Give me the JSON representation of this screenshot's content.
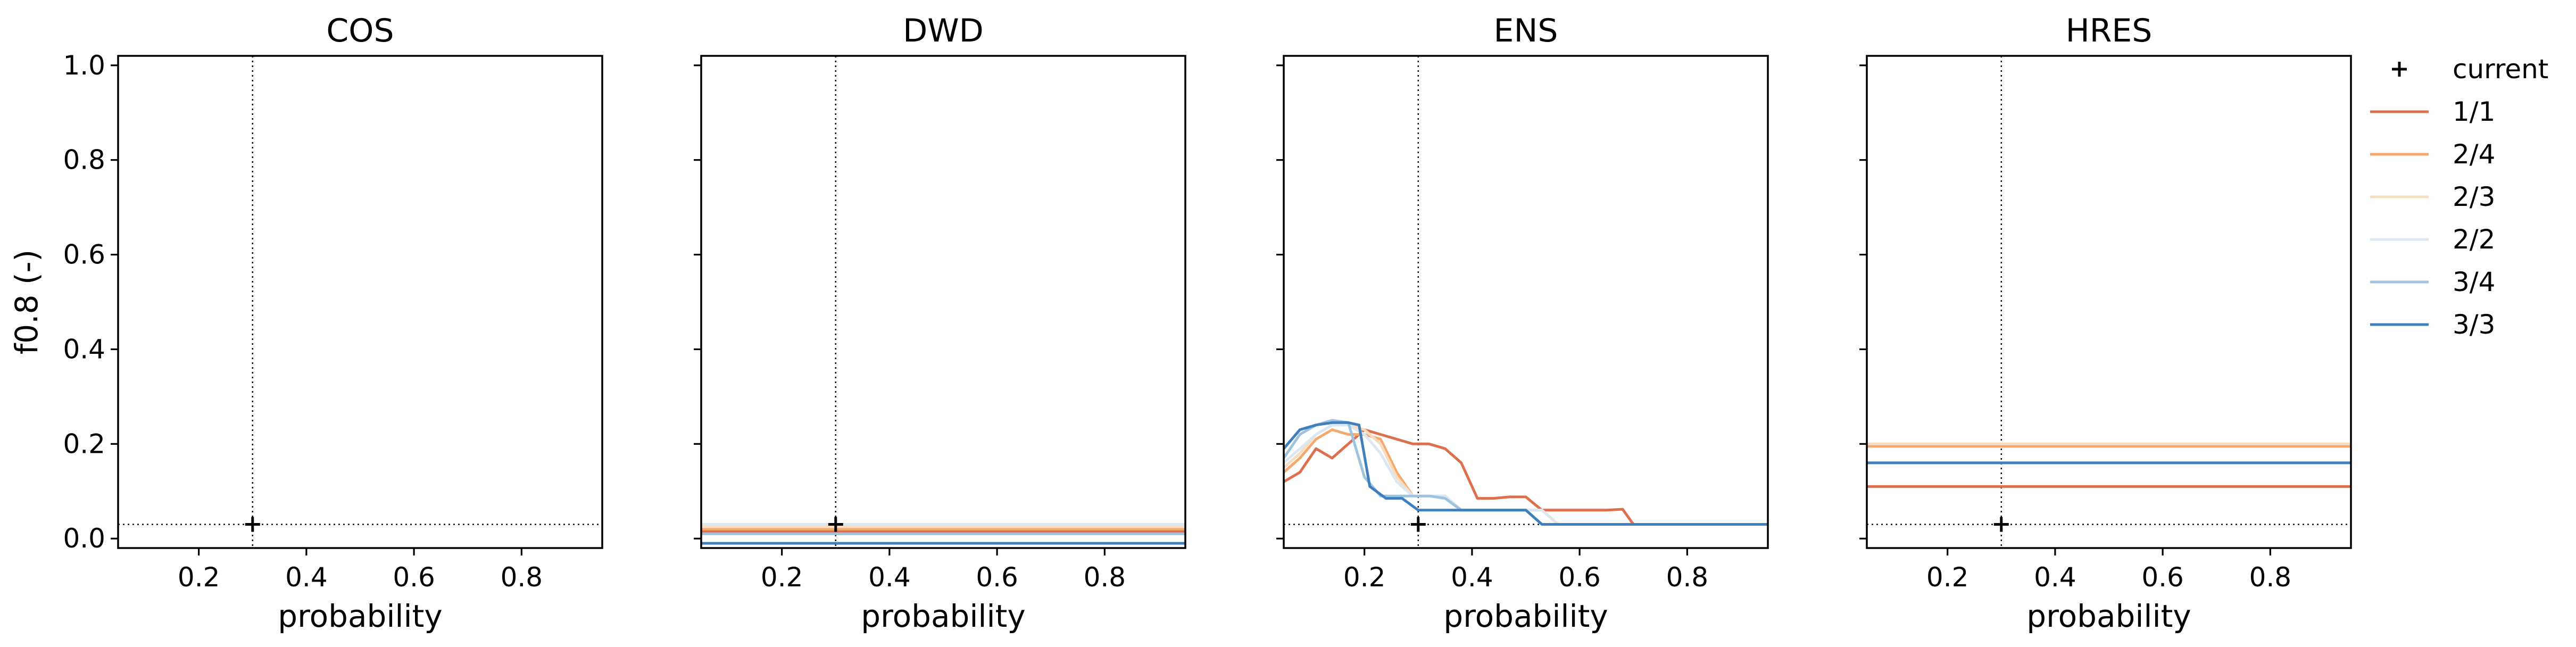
{
  "chart_data": [
    {
      "type": "line",
      "title": "COS",
      "xlabel": "probability",
      "ylabel": "f0.8 (-)",
      "xlim": [
        0.05,
        0.95
      ],
      "ylim": [
        -0.02,
        1.02
      ],
      "xticks": [
        0.2,
        0.4,
        0.6,
        0.8
      ],
      "yticks": [
        0.0,
        0.2,
        0.4,
        0.6,
        0.8,
        1.0
      ],
      "current": {
        "x": 0.3,
        "y": 0.03
      },
      "series": []
    },
    {
      "type": "line",
      "title": "DWD",
      "xlabel": "probability",
      "ylabel": "",
      "xlim": [
        0.05,
        0.95
      ],
      "ylim": [
        -0.02,
        1.02
      ],
      "xticks": [
        0.2,
        0.4,
        0.6,
        0.8
      ],
      "yticks": [
        0.0,
        0.2,
        0.4,
        0.6,
        0.8,
        1.0
      ],
      "current": {
        "x": 0.3,
        "y": 0.03
      },
      "series": [
        {
          "name": "1/1",
          "x": [
            0.05,
            0.95
          ],
          "y": [
            0.015,
            0.015
          ]
        },
        {
          "name": "2/4",
          "x": [
            0.05,
            0.95
          ],
          "y": [
            0.02,
            0.02
          ]
        },
        {
          "name": "2/3",
          "x": [
            0.05,
            0.95
          ],
          "y": [
            0.025,
            0.025
          ]
        },
        {
          "name": "2/2",
          "x": [
            0.05,
            0.95
          ],
          "y": [
            0.03,
            0.03
          ]
        },
        {
          "name": "3/4",
          "x": [
            0.05,
            0.95
          ],
          "y": [
            0.01,
            0.01
          ]
        },
        {
          "name": "3/3",
          "x": [
            0.05,
            0.95
          ],
          "y": [
            -0.01,
            -0.01
          ]
        }
      ]
    },
    {
      "type": "line",
      "title": "ENS",
      "xlabel": "probability",
      "ylabel": "",
      "xlim": [
        0.05,
        0.95
      ],
      "ylim": [
        -0.02,
        1.02
      ],
      "xticks": [
        0.2,
        0.4,
        0.6,
        0.8
      ],
      "yticks": [
        0.0,
        0.2,
        0.4,
        0.6,
        0.8,
        1.0
      ],
      "current": {
        "x": 0.3,
        "y": 0.03
      },
      "series": [
        {
          "name": "1/1",
          "x": [
            0.05,
            0.08,
            0.11,
            0.14,
            0.17,
            0.2,
            0.23,
            0.26,
            0.29,
            0.32,
            0.35,
            0.38,
            0.41,
            0.44,
            0.47,
            0.5,
            0.53,
            0.56,
            0.59,
            0.62,
            0.65,
            0.68,
            0.7,
            0.95
          ],
          "y": [
            0.12,
            0.14,
            0.19,
            0.17,
            0.2,
            0.23,
            0.22,
            0.21,
            0.2,
            0.2,
            0.19,
            0.16,
            0.085,
            0.085,
            0.088,
            0.088,
            0.06,
            0.06,
            0.06,
            0.06,
            0.06,
            0.062,
            0.03,
            0.03
          ]
        },
        {
          "name": "2/4",
          "x": [
            0.05,
            0.08,
            0.11,
            0.14,
            0.17,
            0.2,
            0.23,
            0.26,
            0.29,
            0.32,
            0.35,
            0.38,
            0.41,
            0.44,
            0.47,
            0.5,
            0.53,
            0.56,
            0.95
          ],
          "y": [
            0.14,
            0.17,
            0.21,
            0.23,
            0.22,
            0.22,
            0.21,
            0.14,
            0.09,
            0.09,
            0.09,
            0.06,
            0.06,
            0.06,
            0.06,
            0.06,
            0.06,
            0.03,
            0.03
          ]
        },
        {
          "name": "2/3",
          "x": [
            0.05,
            0.08,
            0.11,
            0.14,
            0.17,
            0.2,
            0.23,
            0.26,
            0.29,
            0.32,
            0.35,
            0.38,
            0.41,
            0.44,
            0.47,
            0.5,
            0.53,
            0.56,
            0.95
          ],
          "y": [
            0.15,
            0.18,
            0.22,
            0.24,
            0.24,
            0.23,
            0.2,
            0.13,
            0.09,
            0.09,
            0.09,
            0.06,
            0.06,
            0.06,
            0.06,
            0.06,
            0.06,
            0.03,
            0.03
          ]
        },
        {
          "name": "2/2",
          "x": [
            0.05,
            0.08,
            0.11,
            0.14,
            0.17,
            0.2,
            0.23,
            0.26,
            0.29,
            0.32,
            0.35,
            0.38,
            0.41,
            0.44,
            0.47,
            0.5,
            0.53,
            0.56,
            0.95
          ],
          "y": [
            0.16,
            0.19,
            0.22,
            0.24,
            0.24,
            0.22,
            0.18,
            0.12,
            0.09,
            0.09,
            0.09,
            0.06,
            0.06,
            0.06,
            0.06,
            0.06,
            0.06,
            0.03,
            0.03
          ]
        },
        {
          "name": "3/4",
          "x": [
            0.05,
            0.08,
            0.11,
            0.14,
            0.17,
            0.2,
            0.23,
            0.26,
            0.29,
            0.32,
            0.35,
            0.38,
            0.41,
            0.44,
            0.47,
            0.5,
            0.53,
            0.95
          ],
          "y": [
            0.17,
            0.22,
            0.24,
            0.25,
            0.245,
            0.13,
            0.09,
            0.09,
            0.09,
            0.09,
            0.085,
            0.06,
            0.06,
            0.06,
            0.06,
            0.06,
            0.03,
            0.03
          ]
        },
        {
          "name": "3/3",
          "x": [
            0.05,
            0.08,
            0.11,
            0.14,
            0.17,
            0.19,
            0.21,
            0.24,
            0.27,
            0.3,
            0.33,
            0.36,
            0.39,
            0.42,
            0.45,
            0.48,
            0.5,
            0.53,
            0.95
          ],
          "y": [
            0.19,
            0.23,
            0.24,
            0.245,
            0.245,
            0.24,
            0.11,
            0.085,
            0.085,
            0.06,
            0.06,
            0.06,
            0.06,
            0.06,
            0.06,
            0.06,
            0.06,
            0.03,
            0.03
          ]
        }
      ]
    },
    {
      "type": "line",
      "title": "HRES",
      "xlabel": "probability",
      "ylabel": "",
      "xlim": [
        0.05,
        0.95
      ],
      "ylim": [
        -0.02,
        1.02
      ],
      "xticks": [
        0.2,
        0.4,
        0.6,
        0.8
      ],
      "yticks": [
        0.0,
        0.2,
        0.4,
        0.6,
        0.8,
        1.0
      ],
      "current": {
        "x": 0.3,
        "y": 0.03
      },
      "series": [
        {
          "name": "1/1",
          "x": [
            0.05,
            0.95
          ],
          "y": [
            0.11,
            0.11
          ]
        },
        {
          "name": "2/4",
          "x": [
            0.05,
            0.95
          ],
          "y": [
            0.195,
            0.195
          ]
        },
        {
          "name": "2/3",
          "x": [
            0.05,
            0.95
          ],
          "y": [
            0.2,
            0.2
          ]
        },
        {
          "name": "2/2",
          "x": [
            0.05,
            0.95
          ],
          "y": [
            0.16,
            0.16
          ]
        },
        {
          "name": "3/4",
          "x": [
            0.05,
            0.95
          ],
          "y": [
            0.16,
            0.16
          ]
        },
        {
          "name": "3/3",
          "x": [
            0.05,
            0.95
          ],
          "y": [
            0.16,
            0.16
          ]
        }
      ]
    }
  ],
  "legend": {
    "placement": "right",
    "items": [
      {
        "label": "current",
        "kind": "marker",
        "color": "#000000"
      },
      {
        "label": "1/1",
        "kind": "line",
        "color": "#dc6f4d"
      },
      {
        "label": "2/4",
        "kind": "line",
        "color": "#f4aa6e"
      },
      {
        "label": "2/3",
        "kind": "line",
        "color": "#f7dcbd"
      },
      {
        "label": "2/2",
        "kind": "line",
        "color": "#dbe8f1"
      },
      {
        "label": "3/4",
        "kind": "line",
        "color": "#9dc3df"
      },
      {
        "label": "3/3",
        "kind": "line",
        "color": "#3f7fbc"
      }
    ]
  }
}
